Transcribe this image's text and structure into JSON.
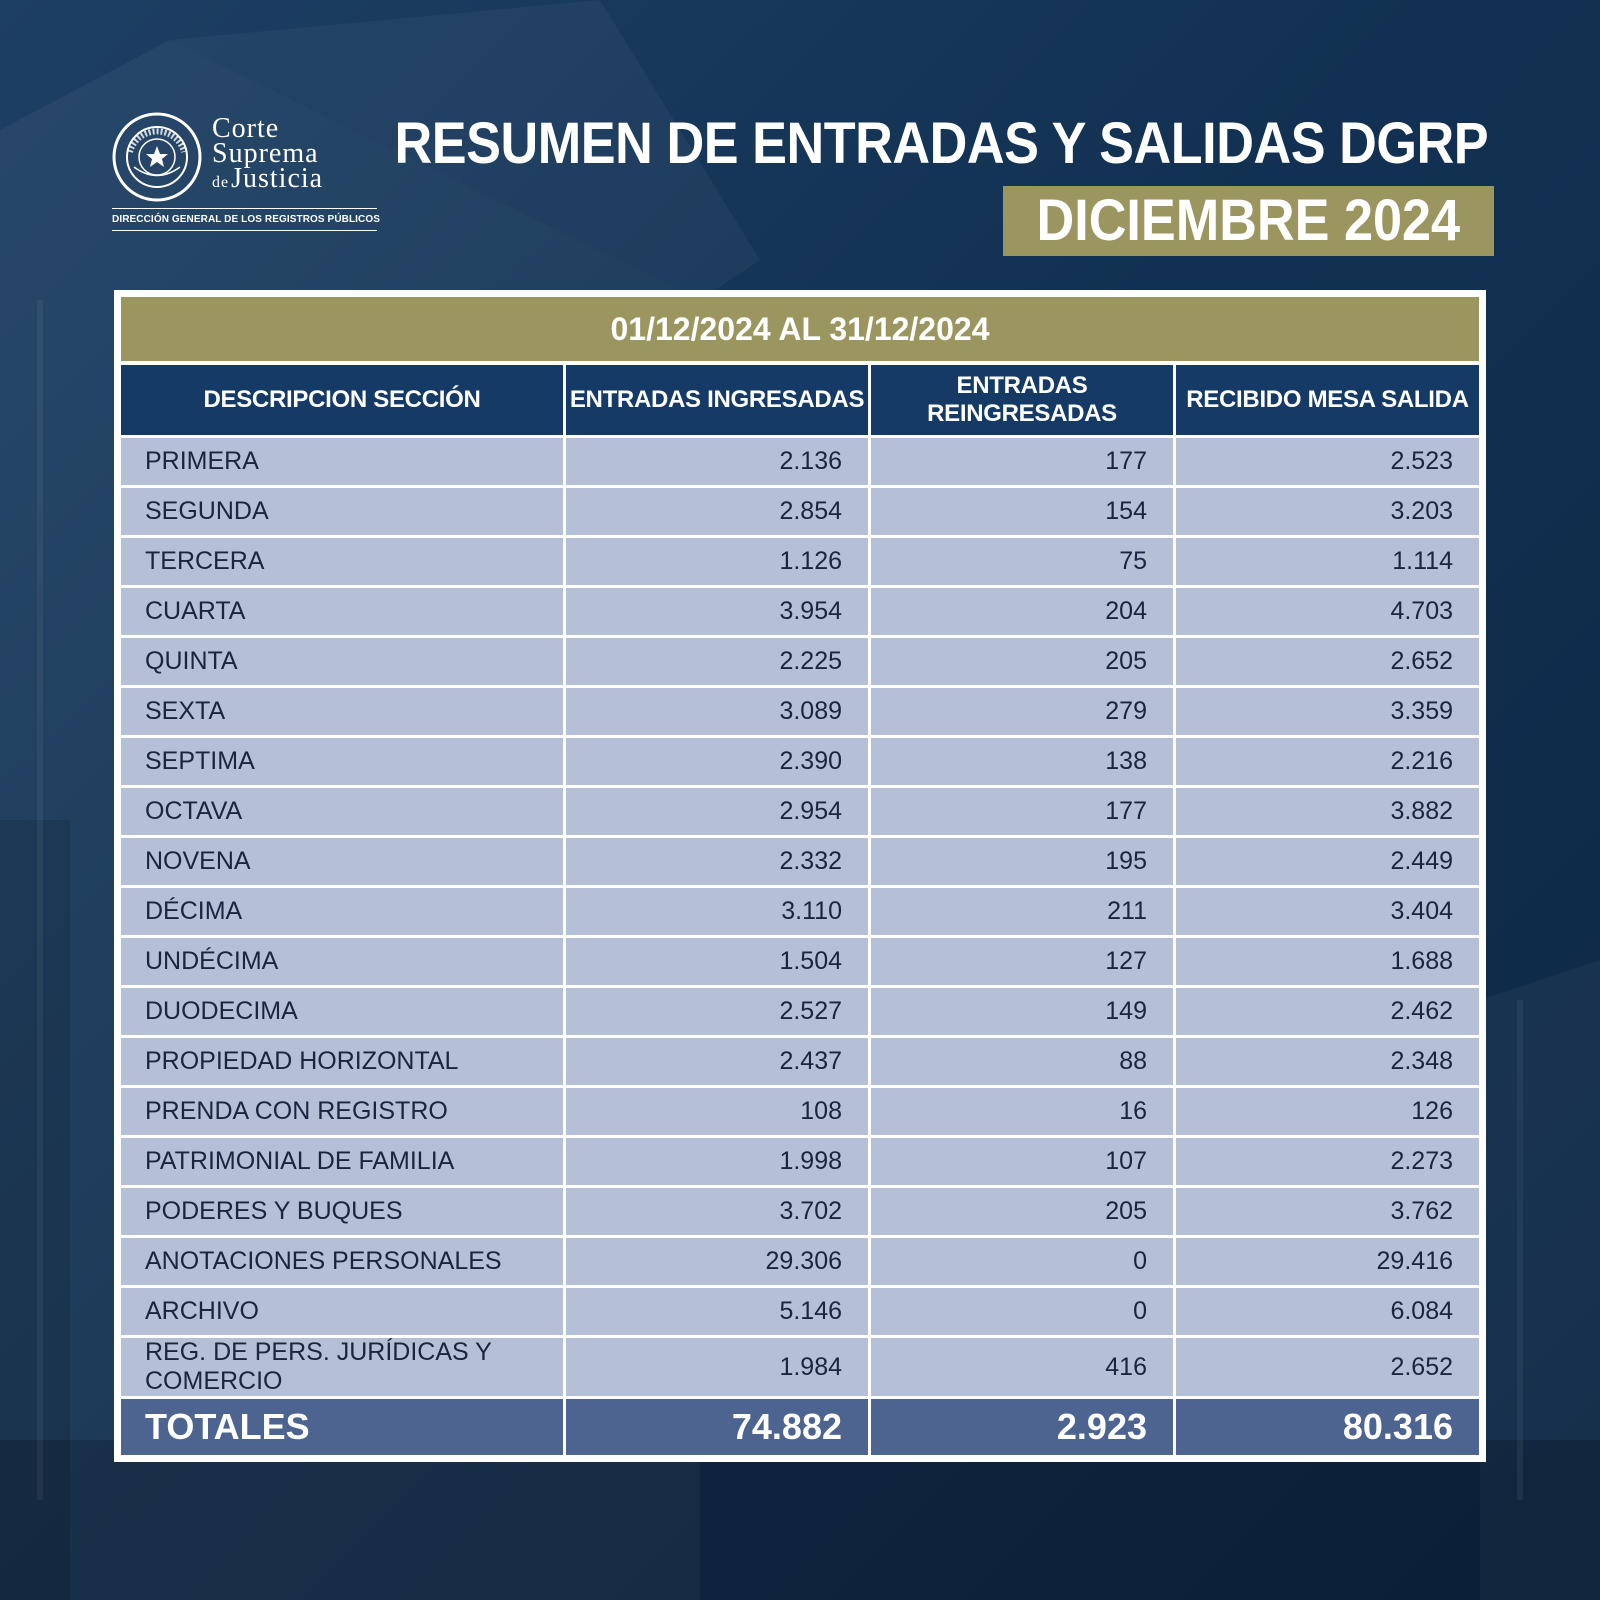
{
  "logo": {
    "word1": "Corte",
    "word2": "Suprema",
    "word_de": "de",
    "word3": "Justicia",
    "seal_text": "REPÚBLICA DEL PARAGUAY",
    "subtitle": "DIRECCIÓN GENERAL DE LOS REGISTROS PÚBLICOS"
  },
  "title": "RESUMEN DE ENTRADAS Y SALIDAS DGRP",
  "period": "DICIEMBRE 2024",
  "table": {
    "date_range": "01/12/2024 AL 31/12/2024",
    "headers": [
      "DESCRIPCION SECCIÓN",
      "ENTRADAS INGRESADAS",
      "ENTRADAS REINGRESADAS",
      "RECIBIDO MESA SALIDA"
    ],
    "rows": [
      {
        "section": "PRIMERA",
        "ingresadas": "2.136",
        "reingresadas": "177",
        "salida": "2.523"
      },
      {
        "section": "SEGUNDA",
        "ingresadas": "2.854",
        "reingresadas": "154",
        "salida": "3.203"
      },
      {
        "section": "TERCERA",
        "ingresadas": "1.126",
        "reingresadas": "75",
        "salida": "1.114"
      },
      {
        "section": "CUARTA",
        "ingresadas": "3.954",
        "reingresadas": "204",
        "salida": "4.703"
      },
      {
        "section": "QUINTA",
        "ingresadas": "2.225",
        "reingresadas": "205",
        "salida": "2.652"
      },
      {
        "section": "SEXTA",
        "ingresadas": "3.089",
        "reingresadas": "279",
        "salida": "3.359"
      },
      {
        "section": "SEPTIMA",
        "ingresadas": "2.390",
        "reingresadas": "138",
        "salida": "2.216"
      },
      {
        "section": "OCTAVA",
        "ingresadas": "2.954",
        "reingresadas": "177",
        "salida": "3.882"
      },
      {
        "section": "NOVENA",
        "ingresadas": "2.332",
        "reingresadas": "195",
        "salida": "2.449"
      },
      {
        "section": "DÉCIMA",
        "ingresadas": "3.110",
        "reingresadas": "211",
        "salida": "3.404"
      },
      {
        "section": "UNDÉCIMA",
        "ingresadas": "1.504",
        "reingresadas": "127",
        "salida": "1.688"
      },
      {
        "section": "DUODECIMA",
        "ingresadas": "2.527",
        "reingresadas": "149",
        "salida": "2.462"
      },
      {
        "section": "PROPIEDAD HORIZONTAL",
        "ingresadas": "2.437",
        "reingresadas": "88",
        "salida": "2.348"
      },
      {
        "section": "PRENDA CON REGISTRO",
        "ingresadas": "108",
        "reingresadas": "16",
        "salida": "126"
      },
      {
        "section": "PATRIMONIAL DE FAMILIA",
        "ingresadas": "1.998",
        "reingresadas": "107",
        "salida": "2.273"
      },
      {
        "section": "PODERES Y BUQUES",
        "ingresadas": "3.702",
        "reingresadas": "205",
        "salida": "3.762"
      },
      {
        "section": "ANOTACIONES PERSONALES",
        "ingresadas": "29.306",
        "reingresadas": "0",
        "salida": "29.416"
      },
      {
        "section": "ARCHIVO",
        "ingresadas": "5.146",
        "reingresadas": "0",
        "salida": "6.084"
      },
      {
        "section": "REG. DE PERS. JURÍDICAS Y COMERCIO",
        "ingresadas": "1.984",
        "reingresadas": "416",
        "salida": "2.652"
      }
    ],
    "totals": {
      "label": "TOTALES",
      "ingresadas": "74.882",
      "reingresadas": "2.923",
      "salida": "80.316"
    }
  },
  "colors": {
    "background": "#123152",
    "olive_accent": "#9b9660",
    "header_navy": "#153a66",
    "row_fill": "#b5bfd6",
    "totals_fill": "#4d6490"
  },
  "icons": {
    "seal": "paraguay-seal-star-icon"
  }
}
